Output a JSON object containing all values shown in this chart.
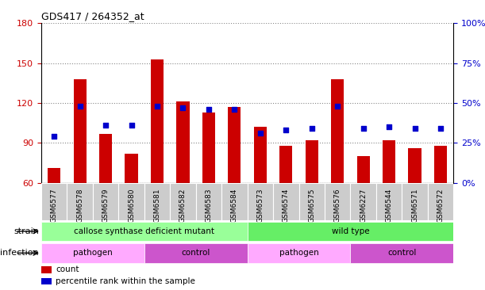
{
  "title": "GDS417 / 264352_at",
  "samples": [
    "GSM6577",
    "GSM6578",
    "GSM6579",
    "GSM6580",
    "GSM6581",
    "GSM6582",
    "GSM6583",
    "GSM6584",
    "GSM6573",
    "GSM6574",
    "GSM6575",
    "GSM6576",
    "GSM6227",
    "GSM6544",
    "GSM6571",
    "GSM6572"
  ],
  "counts": [
    71,
    138,
    97,
    82,
    153,
    121,
    113,
    117,
    102,
    88,
    92,
    138,
    80,
    92,
    86,
    88
  ],
  "percentiles": [
    29,
    48,
    36,
    36,
    48,
    47,
    46,
    46,
    31,
    33,
    34,
    48,
    34,
    35,
    34,
    34
  ],
  "ylim_left": [
    60,
    180
  ],
  "ylim_right": [
    0,
    100
  ],
  "yticks_left": [
    60,
    90,
    120,
    150,
    180
  ],
  "yticks_right": [
    0,
    25,
    50,
    75,
    100
  ],
  "bar_color": "#cc0000",
  "dot_color": "#0000cc",
  "bar_width": 0.5,
  "strain_groups": [
    {
      "label": "callose synthase deficient mutant",
      "start": 0,
      "end": 8,
      "color": "#99ff99"
    },
    {
      "label": "wild type",
      "start": 8,
      "end": 16,
      "color": "#66ee66"
    }
  ],
  "infection_groups": [
    {
      "label": "pathogen",
      "start": 0,
      "end": 4,
      "color": "#ffaaff"
    },
    {
      "label": "control",
      "start": 4,
      "end": 8,
      "color": "#cc55cc"
    },
    {
      "label": "pathogen",
      "start": 8,
      "end": 12,
      "color": "#ffaaff"
    },
    {
      "label": "control",
      "start": 12,
      "end": 16,
      "color": "#cc55cc"
    }
  ],
  "legend_items": [
    {
      "label": "count",
      "color": "#cc0000"
    },
    {
      "label": "percentile rank within the sample",
      "color": "#0000cc"
    }
  ],
  "left_tick_color": "#cc0000",
  "right_tick_color": "#0000cc",
  "grid_color": "#888888",
  "tick_bg_color": "#cccccc",
  "fig_width": 6.11,
  "fig_height": 3.66,
  "dpi": 100
}
